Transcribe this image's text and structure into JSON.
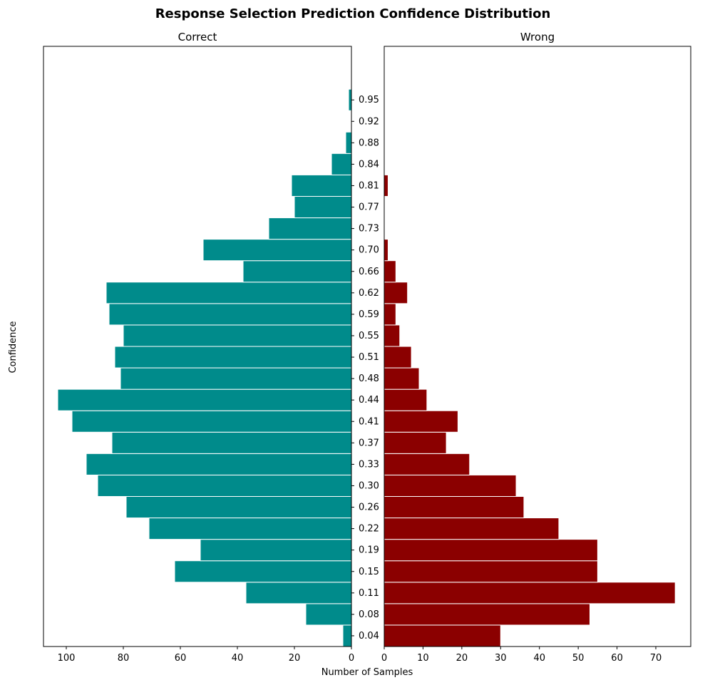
{
  "chart_data": {
    "type": "bar",
    "orientation": "horizontal",
    "layout": "back-to-back",
    "title": "Response Selection Prediction Confidence Distribution",
    "xlabel": "Number of Samples",
    "ylabel": "Confidence",
    "y_ticks": [
      "0.04",
      "0.08",
      "0.11",
      "0.15",
      "0.19",
      "0.22",
      "0.26",
      "0.30",
      "0.33",
      "0.37",
      "0.41",
      "0.44",
      "0.48",
      "0.51",
      "0.55",
      "0.59",
      "0.62",
      "0.66",
      "0.70",
      "0.73",
      "0.77",
      "0.81",
      "0.84",
      "0.88",
      "0.92",
      "0.95"
    ],
    "bins": [
      0.0356,
      0.0688,
      0.102,
      0.1352,
      0.1684,
      0.2016,
      0.2348,
      0.268,
      0.3012,
      0.3344,
      0.3676,
      0.4008,
      0.434,
      0.4672,
      0.5004,
      0.5336,
      0.5668,
      0.6,
      0.6332,
      0.6664,
      0.6996,
      0.7328,
      0.766,
      0.7992,
      0.8324,
      0.8656,
      0.8988,
      0.932
    ],
    "ylim": [
      0.0356,
      0.9652
    ],
    "panels": [
      {
        "title": "Correct",
        "color": "#008b8b",
        "direction": "left",
        "xlim": [
          0,
          108
        ],
        "xticks": [
          0,
          20,
          40,
          60,
          80,
          100
        ],
        "xtick_labels": [
          "0",
          "20",
          "40",
          "60",
          "80",
          "100"
        ],
        "values": [
          3,
          16,
          37,
          62,
          53,
          71,
          79,
          89,
          93,
          84,
          98,
          103,
          81,
          83,
          80,
          85,
          86,
          38,
          52,
          29,
          20,
          21,
          7,
          2,
          0,
          1
        ]
      },
      {
        "title": "Wrong",
        "color": "#8b0000",
        "direction": "right",
        "xlim": [
          0,
          79
        ],
        "xticks": [
          0,
          10,
          20,
          30,
          40,
          50,
          60,
          70
        ],
        "xtick_labels": [
          "0",
          "10",
          "20",
          "30",
          "40",
          "50",
          "60",
          "70"
        ],
        "values": [
          30,
          53,
          75,
          55,
          55,
          45,
          36,
          34,
          22,
          16,
          19,
          11,
          9,
          7,
          4,
          3,
          6,
          3,
          1,
          0,
          0,
          1,
          0,
          0,
          0,
          0
        ]
      }
    ]
  }
}
